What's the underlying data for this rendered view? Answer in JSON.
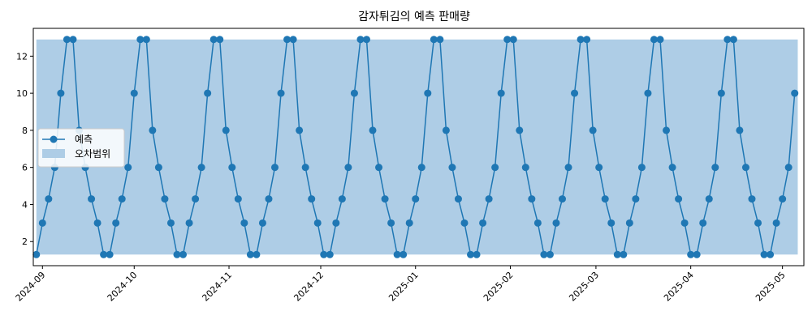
{
  "chart_data": {
    "type": "line",
    "title": "감자튀김의 예측 판매량",
    "xlabel": "",
    "ylabel": "",
    "x_tick_labels": [
      "2024-09",
      "2024-10",
      "2024-11",
      "2024-12",
      "2025-01",
      "2025-02",
      "2025-03",
      "2025-04",
      "2025-05"
    ],
    "y_ticks": [
      2,
      4,
      6,
      8,
      10,
      12
    ],
    "xlim": [
      "2024-08-29",
      "2025-05-08"
    ],
    "ylim": [
      0.7,
      13.5
    ],
    "x_start": "2024-08-30",
    "x_end": "2025-05-06",
    "cycle_values": [
      1.3,
      3.0,
      4.3,
      6.0,
      10.0,
      12.9,
      12.9,
      8.0,
      6.0,
      4.3,
      3.0,
      1.3
    ],
    "grid": false,
    "legend_position": "center-left",
    "series": [
      {
        "name": "예측",
        "color": "#1f77b4",
        "marker": "circle"
      },
      {
        "name": "오차범위",
        "color": "#aecde6",
        "kind": "band",
        "band_range": [
          1.3,
          12.9
        ]
      }
    ]
  }
}
